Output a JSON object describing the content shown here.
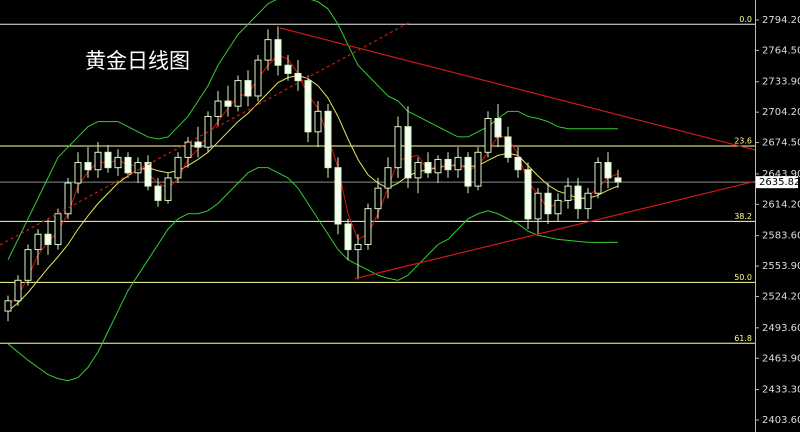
{
  "chart_data": {
    "type": "candlestick",
    "title": "黄金日线图",
    "ylim": [
      2391.9,
      2813.7
    ],
    "yticks": [
      {
        "value": 2794.2,
        "label": "2794.20"
      },
      {
        "value": 2764.5,
        "label": "2764.50"
      },
      {
        "value": 2733.9,
        "label": "2733.90"
      },
      {
        "value": 2704.2,
        "label": "2704.20"
      },
      {
        "value": 2674.5,
        "label": "2674.50"
      },
      {
        "value": 2643.9,
        "label": "2643.90"
      },
      {
        "value": 2614.2,
        "label": "2614.20"
      },
      {
        "value": 2583.6,
        "label": "2583.60"
      },
      {
        "value": 2553.9,
        "label": "2553.90"
      },
      {
        "value": 2524.2,
        "label": "2524.20"
      },
      {
        "value": 2493.6,
        "label": "2493.60"
      },
      {
        "value": 2463.9,
        "label": "2463.90"
      },
      {
        "value": 2433.3,
        "label": "2433.30"
      },
      {
        "value": 2403.6,
        "label": "2403.60"
      }
    ],
    "last_price": 2635.82,
    "fib_levels": [
      {
        "value": 2790.0,
        "label": "0.0"
      },
      {
        "value": 2671.1,
        "label": "23.6"
      },
      {
        "value": 2597.5,
        "label": "38.2"
      },
      {
        "value": 2538.0,
        "label": "50.0"
      },
      {
        "value": 2478.5,
        "label": "61.8"
      }
    ],
    "open": [
      2510,
      2520,
      2540,
      2570,
      2585,
      2575,
      2605,
      2635,
      2655,
      2648,
      2665,
      2650,
      2660,
      2645,
      2655,
      2632,
      2618,
      2640,
      2660,
      2675,
      2670,
      2700,
      2715,
      2710,
      2735,
      2720,
      2755,
      2775,
      2750,
      2742,
      2735,
      2685,
      2705,
      2650,
      2595,
      2570,
      2575,
      2610,
      2630,
      2650,
      2690,
      2640,
      2655,
      2645,
      2658,
      2648,
      2660,
      2632,
      2665,
      2698,
      2680,
      2660,
      2648,
      2600,
      2625,
      2605,
      2618,
      2632,
      2610,
      2625,
      2655,
      2640
    ],
    "high": [
      2525,
      2545,
      2575,
      2590,
      2600,
      2610,
      2640,
      2665,
      2670,
      2675,
      2672,
      2668,
      2665,
      2660,
      2662,
      2640,
      2645,
      2665,
      2680,
      2690,
      2705,
      2725,
      2730,
      2740,
      2745,
      2760,
      2785,
      2788,
      2760,
      2755,
      2740,
      2715,
      2712,
      2660,
      2600,
      2585,
      2615,
      2640,
      2660,
      2700,
      2710,
      2660,
      2665,
      2662,
      2665,
      2670,
      2665,
      2670,
      2705,
      2712,
      2690,
      2670,
      2655,
      2630,
      2635,
      2625,
      2640,
      2640,
      2630,
      2660,
      2665,
      2648
    ],
    "low": [
      2500,
      2515,
      2535,
      2555,
      2565,
      2570,
      2600,
      2625,
      2640,
      2640,
      2645,
      2642,
      2640,
      2635,
      2628,
      2612,
      2615,
      2635,
      2650,
      2660,
      2665,
      2690,
      2700,
      2705,
      2710,
      2715,
      2745,
      2740,
      2735,
      2725,
      2675,
      2670,
      2640,
      2585,
      2560,
      2541,
      2570,
      2600,
      2620,
      2640,
      2630,
      2625,
      2640,
      2635,
      2640,
      2640,
      2625,
      2628,
      2660,
      2670,
      2655,
      2640,
      2590,
      2585,
      2595,
      2598,
      2610,
      2600,
      2600,
      2620,
      2630,
      2630
    ],
    "close": [
      2520,
      2540,
      2570,
      2585,
      2575,
      2605,
      2635,
      2655,
      2648,
      2665,
      2650,
      2660,
      2645,
      2655,
      2632,
      2618,
      2640,
      2660,
      2675,
      2670,
      2700,
      2715,
      2710,
      2735,
      2720,
      2755,
      2775,
      2750,
      2742,
      2735,
      2685,
      2705,
      2650,
      2595,
      2570,
      2575,
      2610,
      2630,
      2650,
      2690,
      2640,
      2655,
      2645,
      2658,
      2648,
      2660,
      2632,
      2665,
      2698,
      2680,
      2660,
      2648,
      2600,
      2625,
      2605,
      2618,
      2632,
      2610,
      2625,
      2655,
      2640,
      2636
    ],
    "lines": [
      {
        "color": "#33cc33",
        "values": [
          2560,
          2580,
          2600,
          2620,
          2640,
          2660,
          2670,
          2680,
          2690,
          2695,
          2695,
          2695,
          2690,
          2685,
          2680,
          2678,
          2680,
          2690,
          2700,
          2715,
          2730,
          2750,
          2765,
          2780,
          2790,
          2800,
          2810,
          2815,
          2820,
          2818,
          2815,
          2812,
          2805,
          2790,
          2770,
          2750,
          2740,
          2730,
          2720,
          2715,
          2705,
          2700,
          2695,
          2690,
          2685,
          2680,
          2680,
          2685,
          2690,
          2698,
          2705,
          2705,
          2700,
          2698,
          2695,
          2690,
          2688,
          2688,
          2688,
          2688,
          2688,
          2688
        ]
      },
      {
        "color": "#33cc33",
        "values": [
          2478,
          2470,
          2462,
          2455,
          2448,
          2444,
          2442,
          2445,
          2455,
          2470,
          2490,
          2510,
          2530,
          2545,
          2560,
          2575,
          2590,
          2600,
          2605,
          2605,
          2608,
          2615,
          2625,
          2635,
          2645,
          2650,
          2650,
          2645,
          2640,
          2630,
          2615,
          2600,
          2585,
          2570,
          2560,
          2555,
          2550,
          2545,
          2542,
          2540,
          2545,
          2555,
          2565,
          2575,
          2580,
          2590,
          2600,
          2605,
          2608,
          2605,
          2600,
          2595,
          2588,
          2584,
          2582,
          2580,
          2579,
          2578,
          2577,
          2577,
          2577,
          2577
        ]
      },
      {
        "color": "#e6e65c",
        "values": [
          2510,
          2518,
          2528,
          2540,
          2552,
          2563,
          2575,
          2590,
          2603,
          2615,
          2625,
          2635,
          2642,
          2648,
          2650,
          2647,
          2645,
          2647,
          2652,
          2658,
          2665,
          2675,
          2685,
          2695,
          2703,
          2713,
          2723,
          2733,
          2738,
          2740,
          2737,
          2730,
          2718,
          2700,
          2678,
          2658,
          2643,
          2635,
          2630,
          2635,
          2642,
          2646,
          2648,
          2650,
          2652,
          2652,
          2651,
          2652,
          2657,
          2662,
          2664,
          2662,
          2652,
          2642,
          2633,
          2627,
          2624,
          2620,
          2620,
          2623,
          2628,
          2632
        ]
      },
      {
        "color": "#e01010",
        "values": [
          2515,
          2525,
          2543,
          2565,
          2577,
          2588,
          2605,
          2632,
          2646,
          2656,
          2654,
          2658,
          2652,
          2653,
          2644,
          2635,
          2630,
          2639,
          2658,
          2668,
          2682,
          2695,
          2708,
          2720,
          2722,
          2737,
          2750,
          2760,
          2756,
          2742,
          2721,
          2708,
          2680,
          2650,
          2605,
          2580,
          2585,
          2605,
          2630,
          2657,
          2660,
          2662,
          2647,
          2653,
          2650,
          2655,
          2647,
          2652,
          2665,
          2681,
          2679,
          2663,
          2636,
          2624,
          2610,
          2616,
          2618,
          2620,
          2622,
          2630,
          2640,
          2644
        ]
      }
    ],
    "trend_lines": [
      {
        "color": "#d01818",
        "x": [
          27.2,
          74.7
        ],
        "y": [
          2786.4,
          2667.3
        ]
      },
      {
        "color": "#d01818",
        "x": [
          34.7,
          74.7
        ],
        "y": [
          2541.7,
          2636.7
        ]
      },
      {
        "color": "#d01818",
        "dashed": true,
        "x": [
          -0.8,
          40.2
        ],
        "y": [
          2574.5,
          2792.2
        ]
      }
    ]
  }
}
